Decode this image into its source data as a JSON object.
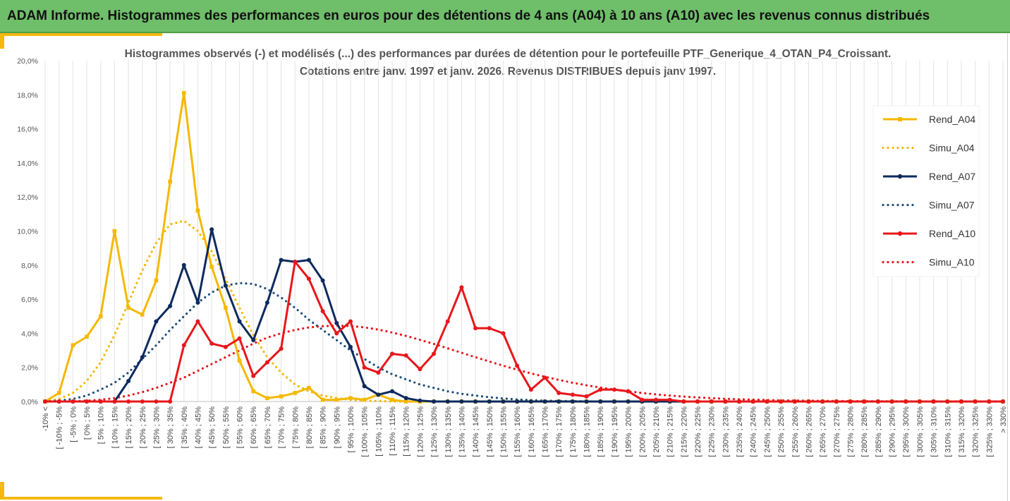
{
  "header": {
    "title": "ADAM Informe. Histogrammes des performances en euros pour des détentions de 4 ans (A04) à 10 ans (A10) avec les revenus connus distribués"
  },
  "chart_data": {
    "type": "line",
    "title_line1": "Histogrammes observés (-) et modélisés (...) des performances par durées de détention pour  le portefeuille PTF_Generique_4_OTAN_P4_Croissant.",
    "title_line2": "Cotations  entre janv. 1997 et janv. 2026. Revenus DISTRIBUES depuis janv 1997.",
    "ylim": [
      0,
      20
    ],
    "y_ticks": [
      "0,0%",
      "2,0%",
      "4,0%",
      "6,0%",
      "8,0%",
      "10,0%",
      "12,0%",
      "14,0%",
      "16,0%",
      "18,0%",
      "20,0%"
    ],
    "categories": [
      "-10% <",
      "[ -10% ; -5%",
      "[ -5% ; 0%",
      "[ 0% ; 5%",
      "[ 5% ; 10%",
      "[ 10% ; 15%",
      "[ 15% ; 20%",
      "[ 20% ; 25%",
      "[ 25% ; 30%",
      "[ 30% ; 35%",
      "[ 35% ; 40%",
      "[ 40% ; 45%",
      "[ 45% ; 50%",
      "[ 50% ; 55%",
      "[ 55% ; 60%",
      "[ 60% ; 65%",
      "[ 65% ; 70%",
      "[ 70% ; 75%",
      "[ 75% ; 80%",
      "[ 80% ; 85%",
      "[ 85% ; 90%",
      "[ 90% ; 95%",
      "[ 95% ; 100%",
      "[ 100% ; 105%",
      "[ 105% ; 110%",
      "[ 110% ; 115%",
      "[ 115% ; 120%",
      "[ 120% ; 125%",
      "[ 125% ; 130%",
      "[ 130% ; 135%",
      "[ 135% ; 140%",
      "[ 140% ; 145%",
      "[ 145% ; 150%",
      "[ 150% ; 155%",
      "[ 155% ; 160%",
      "[ 160% ; 165%",
      "[ 165% ; 170%",
      "[ 170% ; 175%",
      "[ 175% ; 180%",
      "[ 180% ; 185%",
      "[ 185% ; 190%",
      "[ 190% ; 195%",
      "[ 195% ; 200%",
      "[ 200% ; 205%",
      "[ 205% ; 210%",
      "[ 210% ; 215%",
      "[ 215% ; 220%",
      "[ 220% ; 225%",
      "[ 225% ; 230%",
      "[ 230% ; 235%",
      "[ 235% ; 240%",
      "[ 240% ; 245%",
      "[ 245% ; 250%",
      "[ 250% ; 255%",
      "[ 255% ; 260%",
      "[ 260% ; 265%",
      "[ 265% ; 270%",
      "[ 270% ; 275%",
      "[ 275% ; 280%",
      "[ 280% ; 285%",
      "[ 285% ; 290%",
      "[ 290% ; 295%",
      "[ 295% ; 300%",
      "[ 300% ; 305%",
      "[ 305% ; 310%",
      "[ 310% ; 315%",
      "[ 315% ; 320%",
      "[ 320% ; 325%",
      "[ 325% ; 330%",
      "> 330%"
    ],
    "series": [
      {
        "name": "Rend_A04",
        "color": "#f5b800",
        "style": "solid",
        "marker": "square",
        "values": [
          0,
          0.5,
          3.3,
          3.8,
          5.0,
          10.0,
          5.5,
          5.1,
          7.1,
          12.9,
          18.1,
          11.2,
          7.9,
          5.5,
          2.4,
          0.6,
          0.2,
          0.3,
          0.5,
          0.8,
          0.1,
          0.1,
          0.2,
          0.1,
          0.4,
          0.1,
          0,
          0,
          0,
          0,
          0,
          0,
          0,
          0,
          0,
          0,
          0,
          0,
          0,
          0,
          0,
          0,
          0,
          0,
          0,
          0,
          0,
          0,
          0,
          0,
          0,
          0,
          0,
          0,
          0,
          0,
          0,
          0,
          0,
          0,
          0,
          0,
          0,
          0,
          0,
          0,
          0,
          0,
          0,
          0
        ]
      },
      {
        "name": "Simu_A04",
        "color": "#f5b800",
        "style": "dotted",
        "values": [
          0,
          0.15,
          0.5,
          1.2,
          2.3,
          3.9,
          5.8,
          7.7,
          9.3,
          10.4,
          10.6,
          10.0,
          8.8,
          7.2,
          5.5,
          3.9,
          2.6,
          1.7,
          1.0,
          0.6,
          0.35,
          0.2,
          0.1,
          0.05,
          0.03,
          0,
          0,
          0,
          0,
          0,
          0,
          0,
          0,
          0,
          0,
          0,
          0,
          0,
          0,
          0,
          0,
          0,
          0,
          0,
          0,
          0,
          0,
          0,
          0,
          0,
          0,
          0,
          0,
          0,
          0,
          0,
          0,
          0,
          0,
          0,
          0,
          0,
          0,
          0,
          0,
          0,
          0,
          0,
          0,
          0
        ]
      },
      {
        "name": "Rend_A07",
        "color": "#0d2a5e",
        "style": "solid",
        "marker": "circle",
        "values": [
          0,
          0,
          0,
          0,
          0,
          0,
          1.2,
          2.6,
          4.7,
          5.6,
          8.0,
          5.8,
          10.1,
          6.8,
          4.7,
          3.6,
          5.8,
          8.3,
          8.2,
          8.3,
          7.1,
          4.6,
          3.2,
          0.9,
          0.4,
          0.6,
          0.2,
          0.05,
          0,
          0,
          0,
          0,
          0,
          0,
          0,
          0,
          0,
          0,
          0,
          0,
          0,
          0,
          0,
          0,
          0,
          0,
          0,
          0,
          0,
          0,
          0,
          0,
          0,
          0,
          0,
          0,
          0,
          0,
          0,
          0,
          0,
          0,
          0,
          0,
          0,
          0,
          0,
          0,
          0,
          0
        ]
      },
      {
        "name": "Simu_A07",
        "color": "#1f4e79",
        "style": "dotted",
        "values": [
          0,
          0.05,
          0.15,
          0.35,
          0.7,
          1.1,
          1.7,
          2.5,
          3.3,
          4.2,
          5.0,
          5.8,
          6.4,
          6.8,
          6.95,
          6.9,
          6.6,
          6.1,
          5.5,
          4.8,
          4.2,
          3.6,
          3.0,
          2.5,
          2.0,
          1.6,
          1.3,
          1.0,
          0.8,
          0.6,
          0.45,
          0.35,
          0.25,
          0.18,
          0.12,
          0.08,
          0.05,
          0.03,
          0.02,
          0.01,
          0,
          0,
          0,
          0,
          0,
          0,
          0,
          0,
          0,
          0,
          0,
          0,
          0,
          0,
          0,
          0,
          0,
          0,
          0,
          0,
          0,
          0,
          0,
          0,
          0,
          0,
          0,
          0,
          0,
          0
        ]
      },
      {
        "name": "Rend_A10",
        "color": "#e8161b",
        "style": "solid",
        "marker": "circle",
        "values": [
          0,
          0,
          0,
          0,
          0,
          0,
          0,
          0,
          0,
          0,
          3.3,
          4.7,
          3.4,
          3.2,
          3.7,
          1.5,
          2.3,
          3.1,
          8.2,
          7.2,
          5.3,
          4.0,
          4.7,
          2.0,
          1.7,
          2.8,
          2.7,
          1.9,
          2.8,
          4.7,
          6.7,
          4.3,
          4.3,
          4.0,
          2.1,
          0.7,
          1.4,
          0.5,
          0.4,
          0.3,
          0.7,
          0.7,
          0.6,
          0.1,
          0.1,
          0.1,
          0,
          0,
          0,
          0,
          0,
          0,
          0,
          0,
          0,
          0,
          0,
          0,
          0,
          0,
          0,
          0,
          0,
          0,
          0,
          0,
          0,
          0,
          0,
          0
        ]
      },
      {
        "name": "Simu_A10",
        "color": "#e8161b",
        "style": "dotted",
        "values": [
          0,
          0,
          0.02,
          0.05,
          0.1,
          0.2,
          0.35,
          0.55,
          0.8,
          1.1,
          1.4,
          1.8,
          2.2,
          2.6,
          3.0,
          3.4,
          3.75,
          4.0,
          4.2,
          4.35,
          4.42,
          4.45,
          4.43,
          4.35,
          4.22,
          4.05,
          3.85,
          3.62,
          3.38,
          3.12,
          2.86,
          2.6,
          2.35,
          2.1,
          1.87,
          1.65,
          1.45,
          1.27,
          1.1,
          0.95,
          0.82,
          0.7,
          0.6,
          0.5,
          0.42,
          0.35,
          0.29,
          0.24,
          0.2,
          0.16,
          0.13,
          0.11,
          0.09,
          0.07,
          0.06,
          0.05,
          0.04,
          0.03,
          0.02,
          0.02,
          0.01,
          0.01,
          0.01,
          0,
          0,
          0,
          0,
          0,
          0,
          0
        ]
      }
    ],
    "legend_position": "right",
    "grid": "vertical"
  }
}
